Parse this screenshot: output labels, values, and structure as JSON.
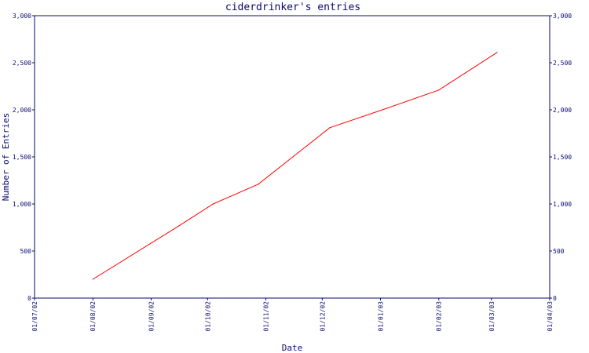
{
  "chart_data": {
    "type": "line",
    "title": "ciderdrinker's entries",
    "xlabel": "Date",
    "ylabel": "Number of Entries",
    "ylim": [
      0,
      3000
    ],
    "y_ticks": [
      "0",
      "500",
      "1,000",
      "1,500",
      "2,000",
      "2,500",
      "3,000"
    ],
    "y_tick_values": [
      0,
      500,
      1000,
      1500,
      2000,
      2500,
      3000
    ],
    "x_ticks": [
      "01/07/02",
      "01/08/02",
      "01/09/02",
      "01/10/02",
      "01/11/02",
      "01/12/02",
      "01/01/03",
      "01/02/03",
      "01/03/03",
      "01/04/03"
    ],
    "x_tick_dates": [
      "2002-07-01",
      "2002-08-01",
      "2002-09-01",
      "2002-10-01",
      "2002-11-01",
      "2002-12-01",
      "2003-01-01",
      "2003-02-01",
      "2003-03-01",
      "2003-04-01"
    ],
    "series": [
      {
        "color": "#ff0000",
        "points": [
          {
            "x": "2002-08-01",
            "y": 200
          },
          {
            "x": "2002-09-16",
            "y": 770
          },
          {
            "x": "2002-10-04",
            "y": 1000
          },
          {
            "x": "2002-10-28",
            "y": 1210
          },
          {
            "x": "2002-12-05",
            "y": 1810
          },
          {
            "x": "2003-01-02",
            "y": 2000
          },
          {
            "x": "2003-02-01",
            "y": 2210
          },
          {
            "x": "2003-03-04",
            "y": 2610
          }
        ]
      }
    ],
    "grid": false,
    "axis_color": "#0a0a70",
    "right_axis_mirrors_left": true
  }
}
